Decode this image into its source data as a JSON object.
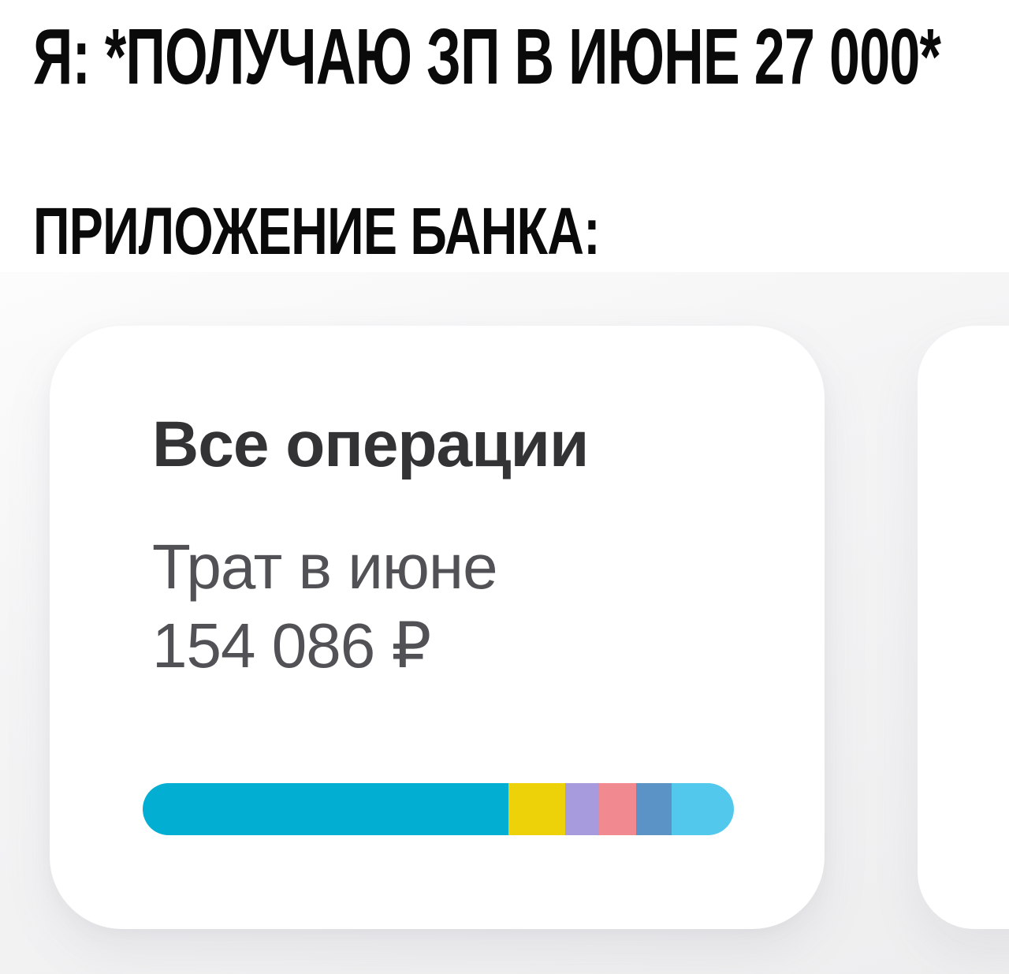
{
  "meme": {
    "top_line": "Я: *ПОЛУЧАЮ ЗП В ИЮНЕ 27 000*",
    "caption_line": "ПРИЛОЖЕНИЕ БАНКА:"
  },
  "bank_app": {
    "card": {
      "title": "Все операции",
      "subtitle": "Трат в июне",
      "amount": "154 086 ₽"
    }
  },
  "chart_data": {
    "type": "bar",
    "orientation": "horizontal-stacked",
    "title": "Трат в июне",
    "total_label": "154 086 ₽",
    "unit": "percent share of June spending (estimated from segment widths)",
    "segments": [
      {
        "name": "category-1-teal",
        "color": "#02afd2",
        "share_pct": 61.9
      },
      {
        "name": "category-2-yellow",
        "color": "#edd20a",
        "share_pct": 9.6
      },
      {
        "name": "category-3-purple",
        "color": "#a79add",
        "share_pct": 5.7
      },
      {
        "name": "category-4-pink",
        "color": "#f08a90",
        "share_pct": 6.3
      },
      {
        "name": "category-5-steel-blue",
        "color": "#5b93c6",
        "share_pct": 5.9
      },
      {
        "name": "category-6-light-blue",
        "color": "#52c9ec",
        "share_pct": 10.6
      }
    ]
  },
  "colors": {
    "meme_text": "#0a0a0a",
    "card_title": "#333336",
    "card_subtitle": "#515156",
    "card_bg": "#ffffff",
    "panel_bg_dark": "#eeeeef",
    "bar_main": "#02afd2"
  }
}
